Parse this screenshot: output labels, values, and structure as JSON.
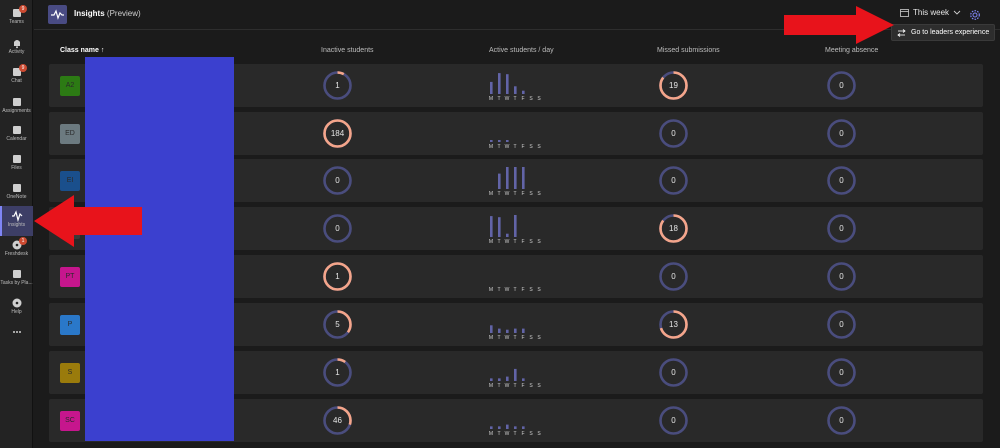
{
  "rail": [
    {
      "label": "Teams",
      "icon": "teams-icon",
      "badge": "9"
    },
    {
      "label": "Activity",
      "icon": "bell-icon",
      "badge": ""
    },
    {
      "label": "Chat",
      "icon": "chat-icon",
      "badge": "9"
    },
    {
      "label": "Assignments",
      "icon": "assignments-icon",
      "badge": ""
    },
    {
      "label": "Calendar",
      "icon": "calendar-icon",
      "badge": ""
    },
    {
      "label": "Files",
      "icon": "files-icon",
      "badge": ""
    },
    {
      "label": "OneNote",
      "icon": "onenote-icon",
      "badge": ""
    },
    {
      "label": "Insights",
      "icon": "pulse-icon",
      "badge": "",
      "active": true
    },
    {
      "label": "Freshdesk",
      "icon": "freshdesk-icon",
      "badge": "1"
    },
    {
      "label": "Tasks by Pla...",
      "icon": "tasks-icon",
      "badge": ""
    },
    {
      "label": "Help",
      "icon": "help-icon",
      "badge": ""
    },
    {
      "label": "",
      "icon": "more-icon",
      "badge": ""
    }
  ],
  "header": {
    "title": "Insights",
    "title_suffix": "(Preview)",
    "week_label": "This week",
    "leaders_label": "Go to leaders experience"
  },
  "columns": [
    "Class name ↑",
    "Inactive students",
    "Active students / day",
    "Missed submissions",
    "Meeting absence"
  ],
  "days": [
    "M",
    "T",
    "W",
    "T",
    "F",
    "S",
    "S"
  ],
  "colors": {
    "ring_track": "#4a4d7e",
    "ring_alert": "#f4a58a",
    "bar": "#6264a7",
    "arrow": "#e8131b",
    "redaction": "#3b40cf"
  },
  "rows": [
    {
      "initials": "A2",
      "avatar_color": "#2c7a14",
      "inactive": "1",
      "inactive_frac": 0.08,
      "bars": [
        0.55,
        0.95,
        0.9,
        0.35,
        0.15,
        0,
        0
      ],
      "missed": "19",
      "missed_frac": 0.85,
      "absence": "0",
      "absence_frac": 0
    },
    {
      "initials": "ED",
      "avatar_color": "#6c7a80",
      "inactive": "184",
      "inactive_frac": 1.0,
      "bars": [
        0.08,
        0.08,
        0.08,
        0,
        0,
        0,
        0
      ],
      "missed": "0",
      "missed_frac": 0,
      "absence": "0",
      "absence_frac": 0
    },
    {
      "initials": "EI",
      "avatar_color": "#1a4f8c",
      "inactive": "0",
      "inactive_frac": 0,
      "bars": [
        0,
        0.7,
        1.0,
        1.0,
        1.0,
        0,
        0
      ],
      "missed": "0",
      "missed_frac": 0,
      "absence": "0",
      "absence_frac": 0
    },
    {
      "initials": "",
      "avatar_color": "#3a3a3a",
      "inactive": "0",
      "inactive_frac": 0,
      "bars": [
        0.95,
        0.9,
        0.15,
        1.0,
        0,
        0,
        0
      ],
      "missed": "18",
      "missed_frac": 0.85,
      "absence": "0",
      "absence_frac": 0
    },
    {
      "initials": "PT",
      "avatar_color": "#c6168d",
      "inactive": "1",
      "inactive_frac": 1.0,
      "bars": [
        0,
        0,
        0,
        0,
        0,
        0,
        0
      ],
      "missed": "0",
      "missed_frac": 0,
      "absence": "0",
      "absence_frac": 0
    },
    {
      "initials": "P",
      "avatar_color": "#2a78c9",
      "inactive": "5",
      "inactive_frac": 0.35,
      "bars": [
        0.35,
        0.2,
        0.15,
        0.2,
        0.2,
        0,
        0
      ],
      "missed": "13",
      "missed_frac": 0.7,
      "absence": "0",
      "absence_frac": 0
    },
    {
      "initials": "S",
      "avatar_color": "#9a7b0c",
      "inactive": "1",
      "inactive_frac": 0.1,
      "bars": [
        0.12,
        0.12,
        0.2,
        0.55,
        0.12,
        0,
        0
      ],
      "missed": "0",
      "missed_frac": 0,
      "absence": "0",
      "absence_frac": 0
    },
    {
      "initials": "SC",
      "avatar_color": "#c6168d",
      "inactive": "46",
      "inactive_frac": 0.3,
      "bars": [
        0.12,
        0.12,
        0.2,
        0.12,
        0.12,
        0,
        0
      ],
      "missed": "0",
      "missed_frac": 0,
      "absence": "0",
      "absence_frac": 0
    }
  ]
}
